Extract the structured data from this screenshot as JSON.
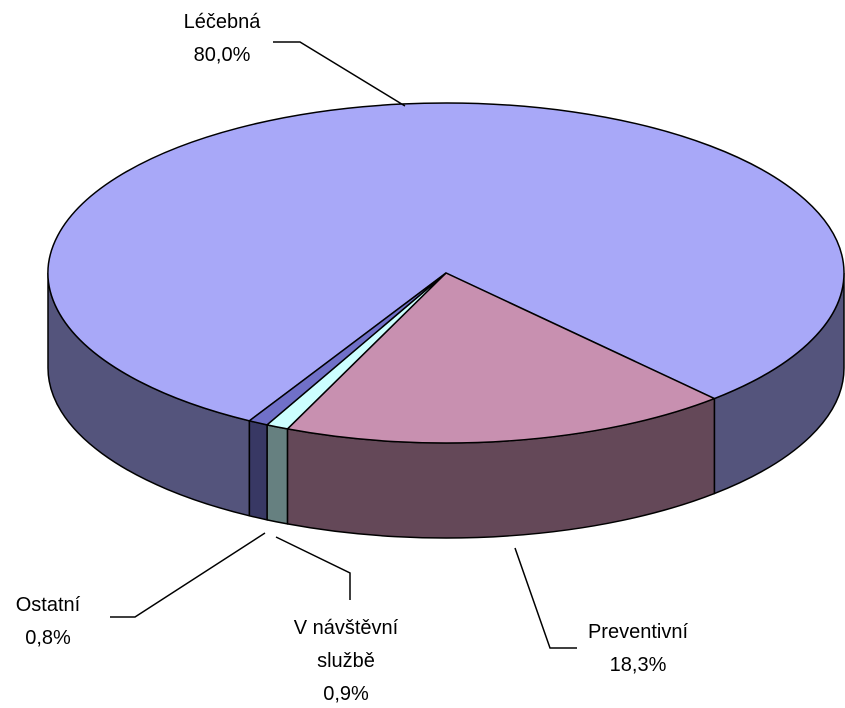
{
  "chart_data": {
    "type": "pie3d",
    "categories": [
      "Léčebná",
      "Preventivní",
      "V návštěvní službě",
      "Ostatní"
    ],
    "values": [
      80.0,
      18.3,
      0.9,
      0.8
    ],
    "value_labels": [
      "80,0%",
      "18,3%",
      "0,9%",
      "0,8%"
    ],
    "colors": [
      "#a8a8f8",
      "#c890b0",
      "#ccffff",
      "#7070c8"
    ]
  }
}
